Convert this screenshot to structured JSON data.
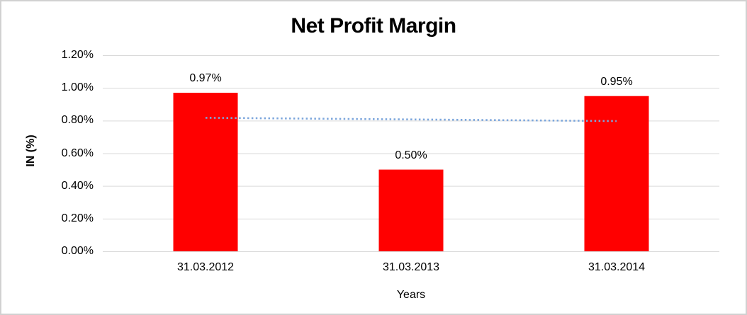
{
  "chart_data": {
    "type": "bar",
    "title": "Net Profit Margin",
    "xlabel": "Years",
    "ylabel": "IN (%)",
    "categories": [
      "31.03.2012",
      "31.03.2013",
      "31.03.2014"
    ],
    "values": [
      0.97,
      0.5,
      0.95
    ],
    "data_labels": [
      "0.97%",
      "0.50%",
      "0.95%"
    ],
    "y_tick_labels": [
      "1.20%",
      "1.00%",
      "0.80%",
      "0.60%",
      "0.40%",
      "0.20%",
      "0.00%"
    ],
    "y_tick_values": [
      1.2,
      1.0,
      0.8,
      0.6,
      0.4,
      0.2,
      0.0
    ],
    "ylim": [
      0,
      1.2
    ],
    "grid": true,
    "legend": "none",
    "trendline": {
      "type": "linear",
      "style": "dotted",
      "start_value": 0.817,
      "end_value": 0.797
    },
    "colors": {
      "bar": "#FF0000",
      "trendline": "#7CA6DC",
      "gridline": "#D9D9D9",
      "text": "#000000",
      "frame_border": "#D1D1D1",
      "background": "#FFFFFF"
    }
  }
}
